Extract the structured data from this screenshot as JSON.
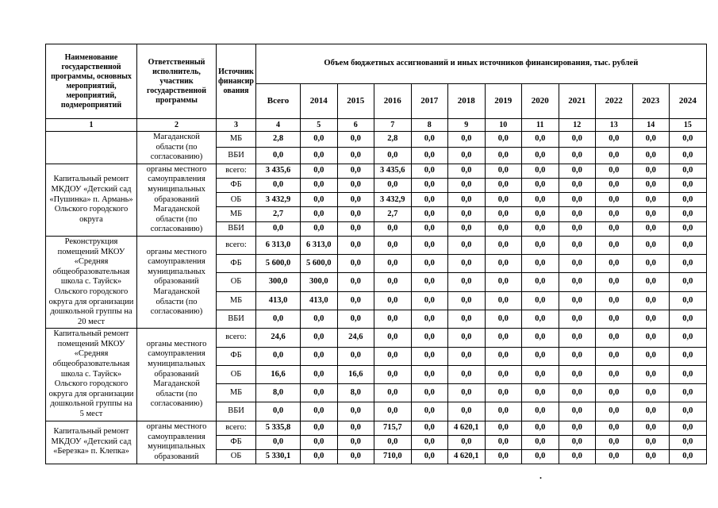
{
  "page": {
    "stray_dot": "."
  },
  "table": {
    "header": {
      "program": "Наименование государственной программы, основных мероприятий, мероприятий, подмероприятий",
      "executor": "Ответственный исполнитель, участник государственной программы",
      "source": "Источник финансирования",
      "finance_title": "Объем бюджетных ассигнований и иных источников финансирования, тыс. рублей",
      "year_cols": [
        "Всего",
        "2014",
        "2015",
        "2016",
        "2017",
        "2018",
        "2019",
        "2020",
        "2021",
        "2022",
        "2023",
        "2024"
      ],
      "col_numbers": [
        "1",
        "2",
        "3",
        "4",
        "5",
        "6",
        "7",
        "8",
        "9",
        "10",
        "11",
        "12",
        "13",
        "14",
        "15"
      ]
    },
    "groups": [
      {
        "name": "",
        "executor": "Магаданской области (по согласованию)",
        "rows": [
          {
            "source": "МБ",
            "values": [
              "2,8",
              "0,0",
              "0,0",
              "2,8",
              "0,0",
              "0,0",
              "0,0",
              "0,0",
              "0,0",
              "0,0",
              "0,0",
              "0,0"
            ]
          },
          {
            "source": "ВБИ",
            "values": [
              "0,0",
              "0,0",
              "0,0",
              "0,0",
              "0,0",
              "0,0",
              "0,0",
              "0,0",
              "0,0",
              "0,0",
              "0,0",
              "0,0"
            ]
          }
        ]
      },
      {
        "name": "Капитальный ремонт МКДОУ «Детский сад «Пушинка» п. Армань» Ольского городского округа",
        "executor": "органы местного самоуправления муниципальных образований Магаданской области (по согласованию)",
        "rows": [
          {
            "source": "всего:",
            "values": [
              "3 435,6",
              "0,0",
              "0,0",
              "3 435,6",
              "0,0",
              "0,0",
              "0,0",
              "0,0",
              "0,0",
              "0,0",
              "0,0",
              "0,0"
            ]
          },
          {
            "source": "ФБ",
            "values": [
              "0,0",
              "0,0",
              "0,0",
              "0,0",
              "0,0",
              "0,0",
              "0,0",
              "0,0",
              "0,0",
              "0,0",
              "0,0",
              "0,0"
            ]
          },
          {
            "source": "ОБ",
            "values": [
              "3 432,9",
              "0,0",
              "0,0",
              "3 432,9",
              "0,0",
              "0,0",
              "0,0",
              "0,0",
              "0,0",
              "0,0",
              "0,0",
              "0,0"
            ]
          },
          {
            "source": "МБ",
            "values": [
              "2,7",
              "0,0",
              "0,0",
              "2,7",
              "0,0",
              "0,0",
              "0,0",
              "0,0",
              "0,0",
              "0,0",
              "0,0",
              "0,0"
            ]
          },
          {
            "source": "ВБИ",
            "values": [
              "0,0",
              "0,0",
              "0,0",
              "0,0",
              "0,0",
              "0,0",
              "0,0",
              "0,0",
              "0,0",
              "0,0",
              "0,0",
              "0,0"
            ]
          }
        ]
      },
      {
        "name": "Реконструкция помещений МКОУ «Средняя общеобразовательная школа с. Тауйск» Ольского городского округа для организации дошкольной группы на 20 мест",
        "executor": "органы местного самоуправления муниципальных образований Магаданской области (по согласованию)",
        "rows": [
          {
            "source": "всего:",
            "values": [
              "6 313,0",
              "6 313,0",
              "0,0",
              "0,0",
              "0,0",
              "0,0",
              "0,0",
              "0,0",
              "0,0",
              "0,0",
              "0,0",
              "0,0"
            ]
          },
          {
            "source": "ФБ",
            "values": [
              "5 600,0",
              "5 600,0",
              "0,0",
              "0,0",
              "0,0",
              "0,0",
              "0,0",
              "0,0",
              "0,0",
              "0,0",
              "0,0",
              "0,0"
            ]
          },
          {
            "source": "ОБ",
            "values": [
              "300,0",
              "300,0",
              "0,0",
              "0,0",
              "0,0",
              "0,0",
              "0,0",
              "0,0",
              "0,0",
              "0,0",
              "0,0",
              "0,0"
            ]
          },
          {
            "source": "МБ",
            "values": [
              "413,0",
              "413,0",
              "0,0",
              "0,0",
              "0,0",
              "0,0",
              "0,0",
              "0,0",
              "0,0",
              "0,0",
              "0,0",
              "0,0"
            ]
          },
          {
            "source": "ВБИ",
            "values": [
              "0,0",
              "0,0",
              "0,0",
              "0,0",
              "0,0",
              "0,0",
              "0,0",
              "0,0",
              "0,0",
              "0,0",
              "0,0",
              "0,0"
            ]
          }
        ]
      },
      {
        "name": "Капитальный ремонт помещений МКОУ «Средняя общеобразовательная школа с. Тауйск» Ольского городского округа для организации дошкольной группы на 5 мест",
        "executor": "органы местного самоуправления муниципальных образований Магаданской области (по согласованию)",
        "rows": [
          {
            "source": "всего:",
            "values": [
              "24,6",
              "0,0",
              "24,6",
              "0,0",
              "0,0",
              "0,0",
              "0,0",
              "0,0",
              "0,0",
              "0,0",
              "0,0",
              "0,0"
            ]
          },
          {
            "source": "ФБ",
            "values": [
              "0,0",
              "0,0",
              "0,0",
              "0,0",
              "0,0",
              "0,0",
              "0,0",
              "0,0",
              "0,0",
              "0,0",
              "0,0",
              "0,0"
            ]
          },
          {
            "source": "ОБ",
            "values": [
              "16,6",
              "0,0",
              "16,6",
              "0,0",
              "0,0",
              "0,0",
              "0,0",
              "0,0",
              "0,0",
              "0,0",
              "0,0",
              "0,0"
            ]
          },
          {
            "source": "МБ",
            "values": [
              "8,0",
              "0,0",
              "8,0",
              "0,0",
              "0,0",
              "0,0",
              "0,0",
              "0,0",
              "0,0",
              "0,0",
              "0,0",
              "0,0"
            ]
          },
          {
            "source": "ВБИ",
            "values": [
              "0,0",
              "0,0",
              "0,0",
              "0,0",
              "0,0",
              "0,0",
              "0,0",
              "0,0",
              "0,0",
              "0,0",
              "0,0",
              "0,0"
            ]
          }
        ]
      },
      {
        "name": "Капитальный ремонт МКДОУ «Детский сад «Березка» п. Клепка»",
        "executor": "органы местного самоуправления муниципальных образований",
        "rows": [
          {
            "source": "всего:",
            "values": [
              "5 335,8",
              "0,0",
              "0,0",
              "715,7",
              "0,0",
              "4 620,1",
              "0,0",
              "0,0",
              "0,0",
              "0,0",
              "0,0",
              "0,0"
            ]
          },
          {
            "source": "ФБ",
            "values": [
              "0,0",
              "0,0",
              "0,0",
              "0,0",
              "0,0",
              "0,0",
              "0,0",
              "0,0",
              "0,0",
              "0,0",
              "0,0",
              "0,0"
            ]
          },
          {
            "source": "ОБ",
            "values": [
              "5 330,1",
              "0,0",
              "0,0",
              "710,0",
              "0,0",
              "4 620,1",
              "0,0",
              "0,0",
              "0,0",
              "0,0",
              "0,0",
              "0,0"
            ]
          }
        ]
      }
    ]
  }
}
